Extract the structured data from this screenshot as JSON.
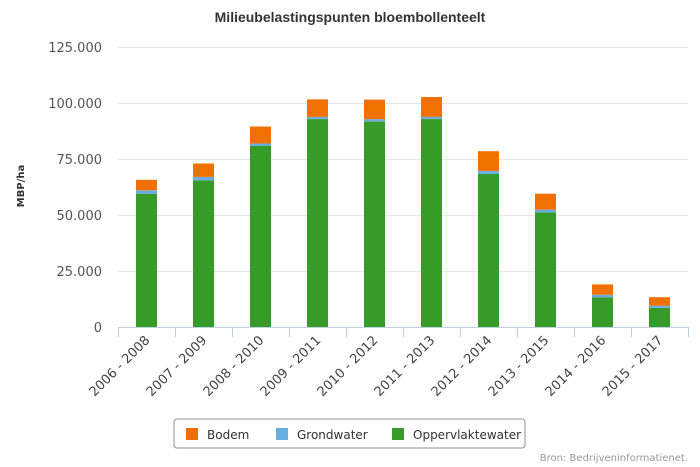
{
  "chart_data": {
    "type": "bar",
    "stacked": true,
    "title": "Milieubelastingspunten bloembollenteelt",
    "ylabel": "MBP/ha",
    "xlabel": "",
    "ylim": [
      0,
      125000
    ],
    "yticks": [
      0,
      25000,
      50000,
      75000,
      100000,
      125000
    ],
    "ytick_labels": [
      "0",
      "25.000",
      "50.000",
      "75.000",
      "100.000",
      "125.000"
    ],
    "grid": true,
    "legend_position": "bottom",
    "categories": [
      "2006 - 2008",
      "2007 - 2009",
      "2008 - 2010",
      "2009 - 2011",
      "2010 - 2012",
      "2011 - 2013",
      "2012 - 2014",
      "2013 - 2015",
      "2014 - 2016",
      "2015 - 2017"
    ],
    "series": [
      {
        "name": "Oppervlaktewater",
        "color": "#379b2a",
        "values": [
          59500,
          65500,
          80800,
          92800,
          91800,
          92800,
          68300,
          51200,
          13200,
          8500
        ]
      },
      {
        "name": "Grondwater",
        "color": "#6aaee0",
        "values": [
          1500,
          1500,
          1100,
          1000,
          1000,
          1000,
          1400,
          1200,
          1200,
          1000
        ]
      },
      {
        "name": "Bodem",
        "color": "#f07000",
        "values": [
          4700,
          6000,
          7600,
          7800,
          8700,
          8900,
          8800,
          7100,
          4600,
          3800
        ]
      }
    ],
    "legend_order": [
      "Bodem",
      "Grondwater",
      "Oppervlaktewater"
    ],
    "credits": "Bron: Bedrijveninformatienet."
  }
}
